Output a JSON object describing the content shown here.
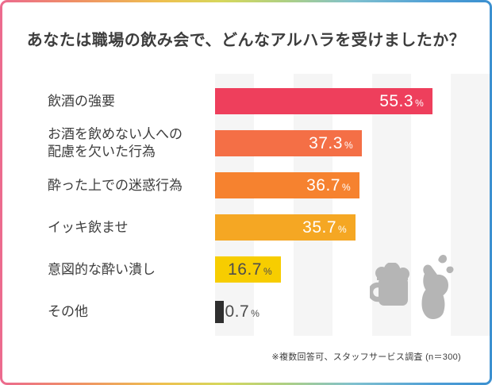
{
  "title": "あなたは職場の飲み会で、どんなアルハラを受けましたか？",
  "footnote": "※複数回答可、スタッフサービス調査 (n＝300)",
  "icons": {
    "beer_mug": "beer-mug",
    "declining_hand": "hand-declining-drink",
    "color": "#b5b5b5"
  },
  "colors": {
    "text": "#3d3d3d",
    "value_dark": "#4d4d4d",
    "stripe": "#f5f5f5",
    "border_gradient": [
      "#ec6a8f",
      "#ef8f66",
      "#eec04f",
      "#d6d75c",
      "#aed083",
      "#7fc0cf",
      "#4f9fd6",
      "#3b90d0"
    ]
  },
  "chart_data": {
    "type": "bar",
    "orientation": "horizontal",
    "title": "あなたは職場の飲み会で、どんなアルハラを受けましたか？",
    "unit": "%",
    "xlim": [
      0,
      70
    ],
    "grid": "alternating vertical 10%-wide bands",
    "legend": "none",
    "categories": [
      "飲酒の強要",
      "お酒を飲めない人への配慮を欠いた行為",
      "酔った上での迷惑行為",
      "イッキ飲ませ",
      "意図的な酔い潰し",
      "その他"
    ],
    "values": [
      55.3,
      37.3,
      36.7,
      35.7,
      16.7,
      0.7
    ],
    "rows": [
      {
        "label": "飲酒の強要",
        "value": 55.3,
        "display": "55.3",
        "bar_color": "#ee3f5c",
        "text_color": "#ffffff",
        "label_inside": true
      },
      {
        "label": "お酒を飲めない人への\n配慮を欠いた行為",
        "value": 37.3,
        "display": "37.3",
        "bar_color": "#f46f46",
        "text_color": "#ffffff",
        "label_inside": true
      },
      {
        "label": "酔った上での迷惑行為",
        "value": 36.7,
        "display": "36.7",
        "bar_color": "#f6822f",
        "text_color": "#ffffff",
        "label_inside": true
      },
      {
        "label": "イッキ飲ませ",
        "value": 35.7,
        "display": "35.7",
        "bar_color": "#f5a723",
        "text_color": "#ffffff",
        "label_inside": true
      },
      {
        "label": "意図的な酔い潰し",
        "value": 16.7,
        "display": "16.7",
        "bar_color": "#f7cd00",
        "text_color": "#4d4d4d",
        "label_inside": true
      },
      {
        "label": "その他",
        "value": 0.7,
        "display": "0.7",
        "bar_color": "#2f2f2f",
        "text_color": "#4d4d4d",
        "label_inside": false
      }
    ],
    "stripe_bands_percent": [
      [
        0,
        10
      ],
      [
        20,
        30
      ],
      [
        40,
        50
      ],
      [
        60,
        70
      ]
    ]
  }
}
